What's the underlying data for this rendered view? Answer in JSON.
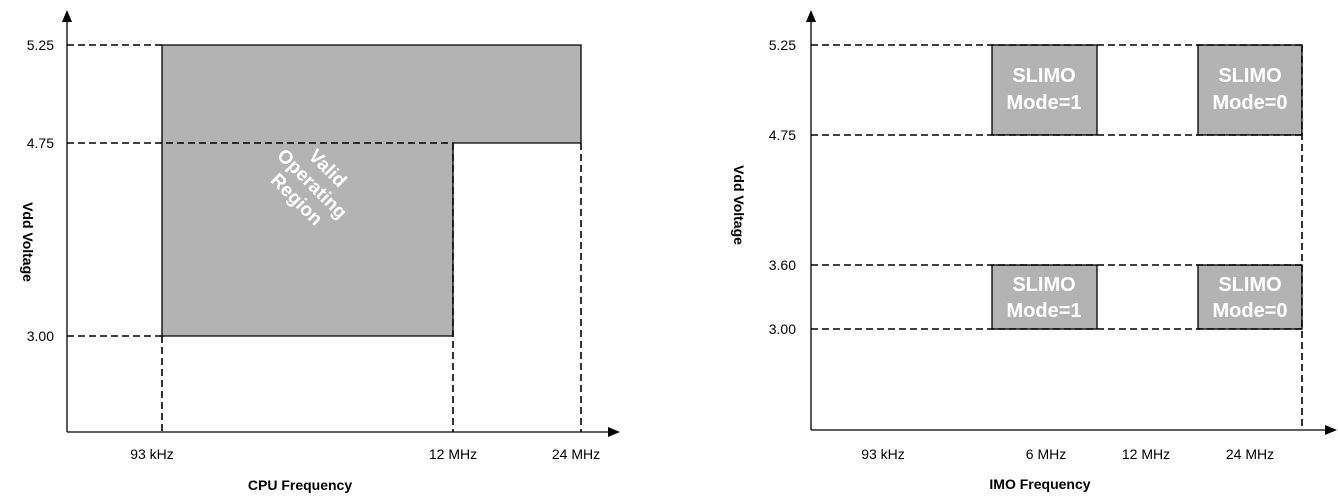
{
  "chart_data": [
    {
      "type": "area",
      "xlabel": "CPU Frequency",
      "ylabel": "Vdd Voltage",
      "x_ticks": [
        "93 kHz",
        "12 MHz",
        "24 MHz"
      ],
      "y_ticks": [
        "3.00",
        "4.75",
        "5.25"
      ],
      "region": {
        "label_lines": [
          "Valid",
          "Operating",
          "Region"
        ],
        "polygon": [
          {
            "x": "93 kHz",
            "y": 3.0
          },
          {
            "x": "12 MHz",
            "y": 3.0
          },
          {
            "x": "12 MHz",
            "y": 4.75
          },
          {
            "x": "24 MHz",
            "y": 4.75
          },
          {
            "x": "24 MHz",
            "y": 5.25
          },
          {
            "x": "93 kHz",
            "y": 5.25
          }
        ]
      },
      "colors": {
        "region": "#b3b3b3"
      }
    },
    {
      "type": "area",
      "xlabel": "IMO Frequency",
      "ylabel": "Vdd Voltage",
      "x_ticks": [
        "93 kHz",
        "6 MHz",
        "12 MHz",
        "24 MHz"
      ],
      "y_ticks": [
        "3.00",
        "3.60",
        "4.75",
        "5.25"
      ],
      "regions": [
        {
          "label_lines": [
            "SLIMO",
            "Mode=1"
          ],
          "x": "6 MHz",
          "y_range": [
            4.75,
            5.25
          ]
        },
        {
          "label_lines": [
            "SLIMO",
            "Mode=0"
          ],
          "x": "24 MHz",
          "y_range": [
            4.75,
            5.25
          ]
        },
        {
          "label_lines": [
            "SLIMO",
            "Mode=1"
          ],
          "x": "6 MHz",
          "y_range": [
            3.0,
            3.6
          ]
        },
        {
          "label_lines": [
            "SLIMO",
            "Mode=0"
          ],
          "x": "24 MHz",
          "y_range": [
            3.0,
            3.6
          ]
        }
      ],
      "colors": {
        "region": "#b3b3b3"
      }
    }
  ]
}
